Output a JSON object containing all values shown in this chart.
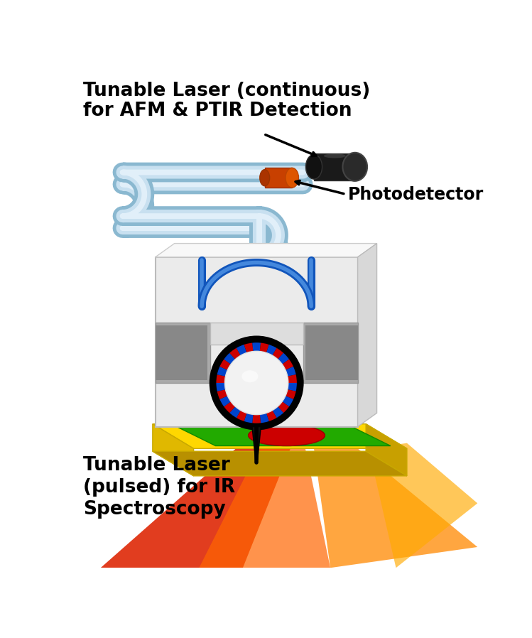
{
  "title_top_line1": "Tunable Laser (continuous)",
  "title_top_line2": "for AFM & PTIR Detection",
  "title_bottom_line1": "Tunable Laser",
  "title_bottom_line2": "(pulsed) for IR",
  "title_bottom_line3": "Spectroscopy",
  "photodetector_label": "Photodetector",
  "bg_color": "#ffffff",
  "title_fontsize": 19,
  "label_fontsize": 17
}
